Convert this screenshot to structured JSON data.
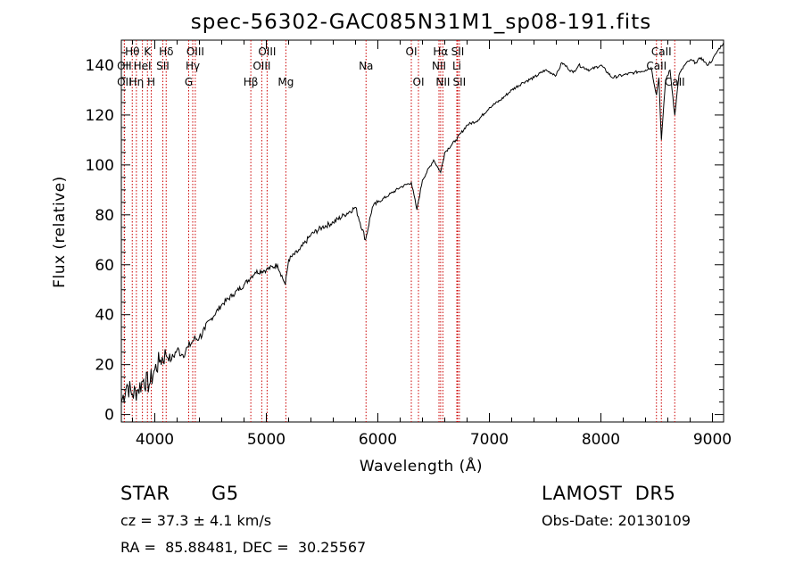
{
  "chart_data": {
    "type": "line",
    "title": "spec-56302-GAC085N31M1_sp08-191.fits",
    "xlabel": "Wavelength (Å)",
    "ylabel": "Flux (relative)",
    "xlim": [
      3700,
      9100
    ],
    "ylim": [
      -3,
      150
    ],
    "xticks": [
      4000,
      5000,
      6000,
      7000,
      8000,
      9000
    ],
    "yticks": [
      0,
      20,
      40,
      60,
      80,
      100,
      120,
      140
    ],
    "series": [
      {
        "x": [
          3700,
          3750,
          3800,
          3850,
          3900,
          3950,
          4000,
          4050,
          4100,
          4150,
          4200,
          4250,
          4300,
          4350,
          4400,
          4450,
          4500,
          4600,
          4700,
          4800,
          4860,
          4900,
          5000,
          5100,
          5170,
          5200,
          5300,
          5400,
          5500,
          5600,
          5700,
          5800,
          5890,
          5950,
          6000,
          6100,
          6200,
          6300,
          6350,
          6400,
          6500,
          6563,
          6600,
          6700,
          6800,
          6900,
          7000,
          7100,
          7200,
          7300,
          7400,
          7500,
          7600,
          7650,
          7700,
          7750,
          7800,
          7900,
          8000,
          8100,
          8200,
          8300,
          8400,
          8450,
          8498,
          8520,
          8542,
          8580,
          8620,
          8662,
          8700,
          8750,
          8800,
          8850,
          8900,
          8950,
          9000,
          9050,
          9100
        ],
        "y": [
          5,
          12,
          8,
          10,
          14,
          12,
          18,
          22,
          24,
          22,
          26,
          24,
          27,
          30,
          31,
          34,
          38,
          44,
          48,
          52,
          55,
          57,
          58,
          60,
          52,
          62,
          66,
          72,
          75,
          77,
          80,
          83,
          70,
          83,
          85,
          88,
          91,
          93,
          82,
          94,
          102,
          97,
          105,
          110,
          116,
          118,
          123,
          126,
          130,
          133,
          135,
          138,
          136,
          141,
          139,
          137,
          140,
          138,
          140,
          135,
          136,
          137,
          138,
          139,
          128,
          135,
          110,
          134,
          138,
          120,
          136,
          140,
          142,
          141,
          143,
          140,
          142,
          146,
          149
        ]
      }
    ],
    "lines": [
      {
        "label": "Hθ",
        "x": 3798,
        "row": 0
      },
      {
        "label": "OII",
        "x": 3727,
        "row": 1
      },
      {
        "label": "OII",
        "x": 3727,
        "row": 2
      },
      {
        "label": "K",
        "x": 3934,
        "row": 0
      },
      {
        "label": "Hη",
        "x": 3835,
        "row": 2
      },
      {
        "label": "HeI",
        "x": 3889,
        "row": 1
      },
      {
        "label": "H",
        "x": 3968,
        "row": 2
      },
      {
        "label": "Hδ",
        "x": 4102,
        "row": 0
      },
      {
        "label": "SII",
        "x": 4072,
        "row": 1
      },
      {
        "label": "OIII",
        "x": 4363,
        "row": 0
      },
      {
        "label": "Hγ",
        "x": 4340,
        "row": 1
      },
      {
        "label": "G",
        "x": 4304,
        "row": 2
      },
      {
        "label": "Hβ",
        "x": 4861,
        "row": 2
      },
      {
        "label": "OIII",
        "x": 5007,
        "row": 0
      },
      {
        "label": "OIII",
        "x": 4959,
        "row": 1
      },
      {
        "label": "Mg",
        "x": 5175,
        "row": 2
      },
      {
        "label": "Na",
        "x": 5894,
        "row": 1
      },
      {
        "label": "OI",
        "x": 6300,
        "row": 0
      },
      {
        "label": "OI",
        "x": 6364,
        "row": 2
      },
      {
        "label": "Hα",
        "x": 6563,
        "row": 0
      },
      {
        "label": "NII",
        "x": 6548,
        "row": 1
      },
      {
        "label": "NII",
        "x": 6583,
        "row": 2
      },
      {
        "label": "SII",
        "x": 6716,
        "row": 0
      },
      {
        "label": "Li",
        "x": 6708,
        "row": 1
      },
      {
        "label": "SII",
        "x": 6731,
        "row": 2
      },
      {
        "label": "CaII",
        "x": 8542,
        "row": 0
      },
      {
        "label": "CaII",
        "x": 8498,
        "row": 1
      },
      {
        "label": "CaII",
        "x": 8662,
        "row": 2
      }
    ],
    "grid": false,
    "line_color": "#000000",
    "marker_line_color": "#cc0000"
  },
  "info": {
    "class_label": "STAR",
    "subclass": "G5",
    "survey": "LAMOST  DR5",
    "cz": "cz = 37.3 ± 4.1 km/s",
    "obs_date": "Obs-Date: 20130109",
    "coords": "RA =  85.88481, DEC =  30.25567"
  }
}
